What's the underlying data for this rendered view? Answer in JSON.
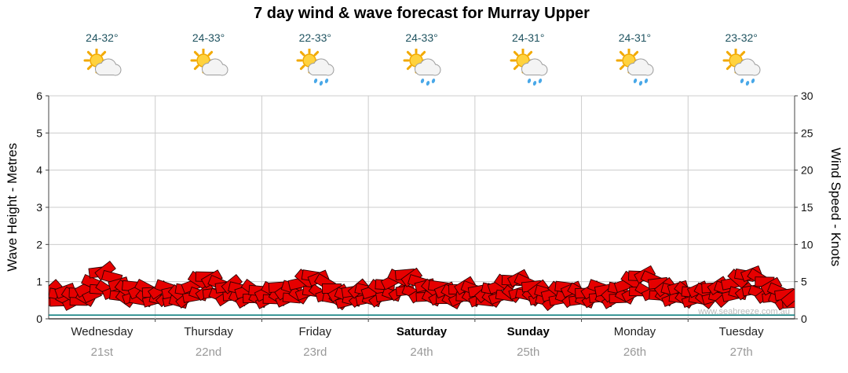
{
  "title": "7 day wind & wave forecast for Murray Upper",
  "watermark": "www.seabreeze.com.au",
  "days": [
    {
      "name": "Wednesday",
      "date": "21st",
      "temp": "24-32°",
      "icon": "sun-cloud",
      "bold": false
    },
    {
      "name": "Thursday",
      "date": "22nd",
      "temp": "24-33°",
      "icon": "sun-cloud",
      "bold": false
    },
    {
      "name": "Friday",
      "date": "23rd",
      "temp": "22-33°",
      "icon": "sun-cloud-rain",
      "bold": false
    },
    {
      "name": "Saturday",
      "date": "24th",
      "temp": "24-33°",
      "icon": "sun-cloud-rain",
      "bold": true
    },
    {
      "name": "Sunday",
      "date": "25th",
      "temp": "24-31°",
      "icon": "sun-cloud-rain",
      "bold": true
    },
    {
      "name": "Monday",
      "date": "26th",
      "temp": "24-31°",
      "icon": "sun-cloud-rain",
      "bold": false
    },
    {
      "name": "Tuesday",
      "date": "27th",
      "temp": "23-32°",
      "icon": "sun-cloud-rain",
      "bold": false
    }
  ],
  "chart_data": {
    "type": "area",
    "title": "7 day wind & wave forecast for Murray Upper",
    "x_categories": [
      "Wednesday 21st",
      "Thursday 22nd",
      "Friday 23rd",
      "Saturday 24th",
      "Sunday 25th",
      "Monday 26th",
      "Tuesday 27th"
    ],
    "points_per_day": 16,
    "grid": true,
    "axes": {
      "left": {
        "label": "Wave Height - Metres",
        "range": [
          0,
          6
        ],
        "ticks": [
          0,
          1,
          2,
          3,
          4,
          5,
          6
        ]
      },
      "right": {
        "label": "Wind Speed - Knots",
        "range": [
          0,
          30
        ],
        "ticks": [
          0,
          5,
          10,
          15,
          20,
          25,
          30
        ]
      }
    },
    "series": [
      {
        "name": "Wind Speed",
        "units": "knots",
        "style": "wind-barbs",
        "color": "#e60000",
        "values": [
          4.5,
          3.8,
          4.3,
          3.6,
          4.0,
          4.6,
          5.4,
          6.8,
          7.0,
          6.1,
          5.2,
          4.5,
          4.9,
          4.3,
          4.7,
          4.1,
          4.4,
          4.8,
          4.1,
          3.8,
          4.4,
          5.0,
          5.7,
          6.2,
          5.9,
          5.3,
          4.8,
          5.2,
          4.6,
          4.2,
          4.6,
          4.3,
          4.0,
          4.4,
          4.8,
          4.3,
          4.7,
          5.3,
          5.9,
          6.3,
          6.0,
          5.4,
          4.6,
          4.0,
          3.7,
          4.2,
          4.6,
          4.4,
          4.2,
          4.6,
          5.1,
          5.6,
          6.1,
          6.5,
          6.1,
          5.5,
          5.0,
          4.6,
          4.9,
          4.4,
          4.0,
          4.5,
          5.0,
          4.6,
          4.3,
          4.0,
          4.5,
          4.9,
          5.3,
          5.7,
          6.0,
          5.5,
          4.9,
          4.5,
          4.1,
          3.8,
          4.3,
          4.8,
          4.5,
          4.2,
          4.0,
          4.4,
          4.8,
          4.4,
          4.1,
          4.6,
          5.1,
          5.7,
          6.3,
          6.5,
          5.9,
          5.3,
          4.8,
          4.4,
          4.7,
          4.3,
          4.1,
          4.5,
          4.2,
          4.7,
          5.0,
          4.6,
          5.3,
          5.9,
          6.4,
          6.6,
          6.1,
          5.5,
          4.9,
          4.3,
          3.8,
          3.4
        ]
      },
      {
        "name": "Wave Height",
        "units": "metres",
        "style": "line",
        "color": "#007878",
        "approx_constant_value": 0.1
      }
    ]
  },
  "colors": {
    "title_text": "#000000",
    "temp_text": "#1f5360",
    "day_text": "#222222",
    "date_text": "#999999",
    "watermark": "#bbbbbb",
    "grid": "#cccccc",
    "axis": "#444444",
    "tick_text": "#111111",
    "barb_fill": "#e60000",
    "barb_stroke": "#2a0000",
    "wave_line": "#007878",
    "sun": "#ffd23e",
    "sun_ray": "#f2a900",
    "cloud": "#ececec",
    "rain_drop": "#49a8e8"
  }
}
